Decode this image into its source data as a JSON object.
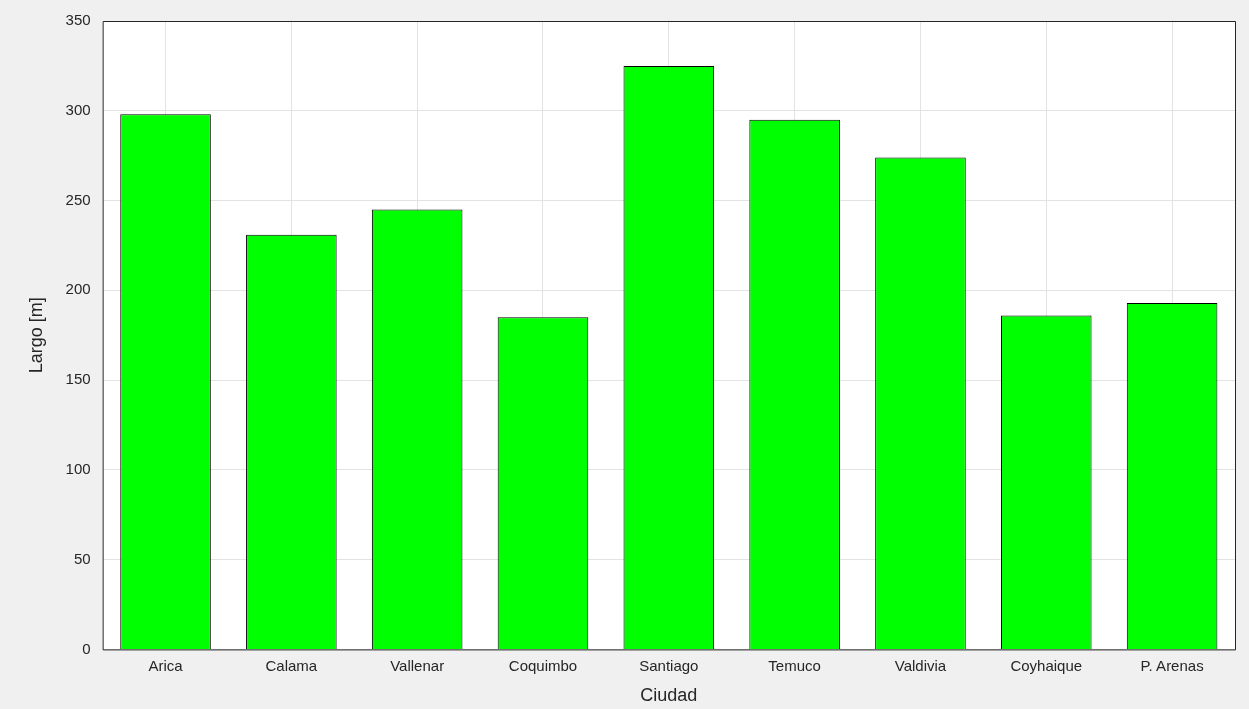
{
  "chart_data": {
    "type": "bar",
    "xlabel": "Ciudad",
    "ylabel": "Largo [m]",
    "categories": [
      "Arica",
      "Calama",
      "Vallenar",
      "Coquimbo",
      "Santiago",
      "Temuco",
      "Valdivia",
      "Coyhaique",
      "P. Arenas"
    ],
    "values": [
      298,
      231,
      245,
      185,
      325,
      295,
      274,
      186,
      193
    ],
    "color": "#00ff00",
    "ylim": [
      0,
      350
    ],
    "yticks": [
      0,
      50,
      100,
      150,
      200,
      250,
      300,
      350
    ],
    "grid": true
  }
}
